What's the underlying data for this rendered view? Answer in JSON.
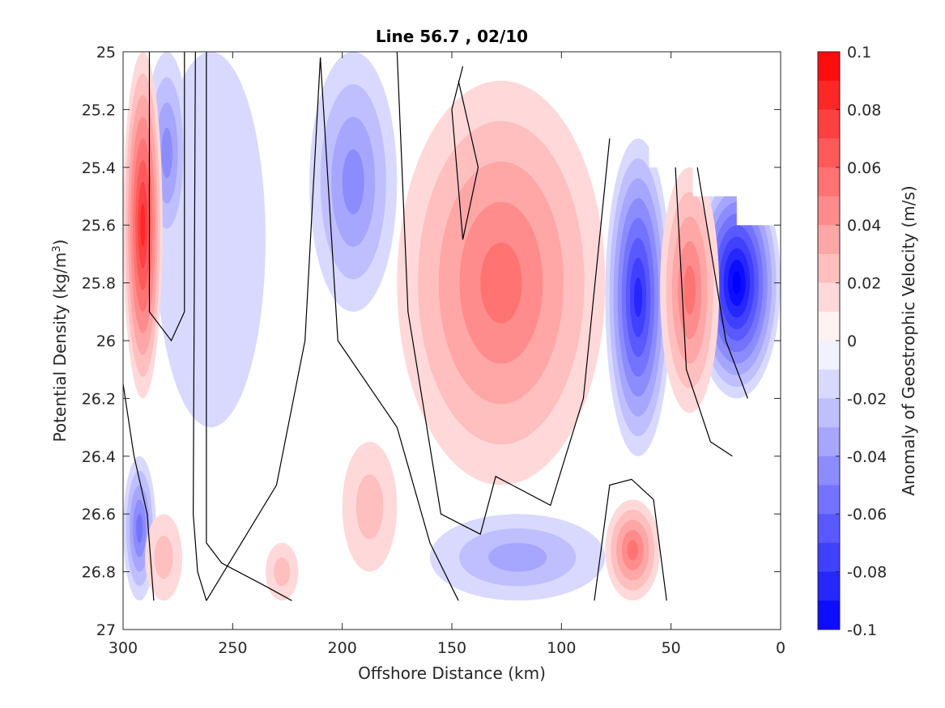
{
  "chart_data": {
    "type": "heatmap",
    "title": "Line 56.7 , 02/10",
    "xlabel": "Offshore Distance (km)",
    "ylabel": "Potential Density (kg/m³)",
    "colorbar_label": "Anomaly of Geostrophic Velocity (m/s)",
    "xlim": [
      300,
      0
    ],
    "ylim": [
      25,
      27
    ],
    "x_reversed": true,
    "y_reversed": true,
    "x_ticks": [
      300,
      250,
      200,
      150,
      100,
      50,
      0
    ],
    "y_ticks": [
      "25",
      "25.2",
      "25.4",
      "25.6",
      "25.8",
      "26",
      "26.2",
      "26.4",
      "26.6",
      "26.8",
      "27"
    ],
    "colorbar": {
      "range": [
        -0.1,
        0.1
      ],
      "tick_labels": [
        "0.1",
        "0.08",
        "0.06",
        "0.04",
        "0.02",
        "0",
        "-0.02",
        "-0.04",
        "-0.06",
        "-0.08",
        "-0.1"
      ],
      "levels": [
        0.1,
        0.09,
        0.08,
        0.07,
        0.06,
        0.05,
        0.04,
        0.03,
        0.02,
        0.01,
        0,
        -0.01,
        -0.02,
        -0.03,
        -0.04,
        -0.05,
        -0.06,
        -0.07,
        -0.08,
        -0.09,
        -0.1
      ],
      "positive_color": "#ff0000",
      "negative_color": "#0000ff",
      "neutral_color": "#ffffff"
    },
    "contour_color": "#000000",
    "features": [
      {
        "name": "nearshore-neg-core",
        "x": [
          0,
          40
        ],
        "y": [
          25.4,
          26.2
        ],
        "peak": -0.1
      },
      {
        "name": "neg-jet-65km",
        "x": [
          50,
          80
        ],
        "y": [
          25.3,
          26.4
        ],
        "peak": -0.08
      },
      {
        "name": "pos-jet-45km",
        "x": [
          28,
          55
        ],
        "y": [
          25.4,
          26.25
        ],
        "peak": 0.05
      },
      {
        "name": "pos-core-118km",
        "x": [
          80,
          175
        ],
        "y": [
          25.1,
          26.5
        ],
        "peak": 0.05
      },
      {
        "name": "pos-deep-68km",
        "x": [
          55,
          80
        ],
        "y": [
          26.55,
          26.9
        ],
        "peak": 0.05
      },
      {
        "name": "neg-175-215km",
        "x": [
          175,
          215
        ],
        "y": [
          25,
          25.9
        ],
        "peak": -0.04
      },
      {
        "name": "neg-230-280km",
        "x": [
          235,
          285
        ],
        "y": [
          25,
          26.3
        ],
        "peak": -0.01
      },
      {
        "name": "neg-270-290km",
        "x": [
          270,
          290
        ],
        "y": [
          25,
          25.7
        ],
        "peak": -0.04
      },
      {
        "name": "pos-west-edge",
        "x": [
          282,
          300
        ],
        "y": [
          25,
          26.2
        ],
        "peak": 0.08
      },
      {
        "name": "neg-deep-west",
        "x": [
          285,
          300
        ],
        "y": [
          26.4,
          26.9
        ],
        "peak": -0.05
      },
      {
        "name": "neg-deep-120km",
        "x": [
          80,
          160
        ],
        "y": [
          26.6,
          26.9
        ],
        "peak": -0.03
      },
      {
        "name": "pos-deep-190km",
        "x": [
          175,
          200
        ],
        "y": [
          26.35,
          26.8
        ],
        "peak": 0.02
      },
      {
        "name": "pos-deep-280km",
        "x": [
          273,
          290
        ],
        "y": [
          26.6,
          26.9
        ],
        "peak": 0.02
      },
      {
        "name": "pos-deep-225km",
        "x": [
          220,
          235
        ],
        "y": [
          26.7,
          26.9
        ],
        "peak": 0.02
      }
    ]
  }
}
